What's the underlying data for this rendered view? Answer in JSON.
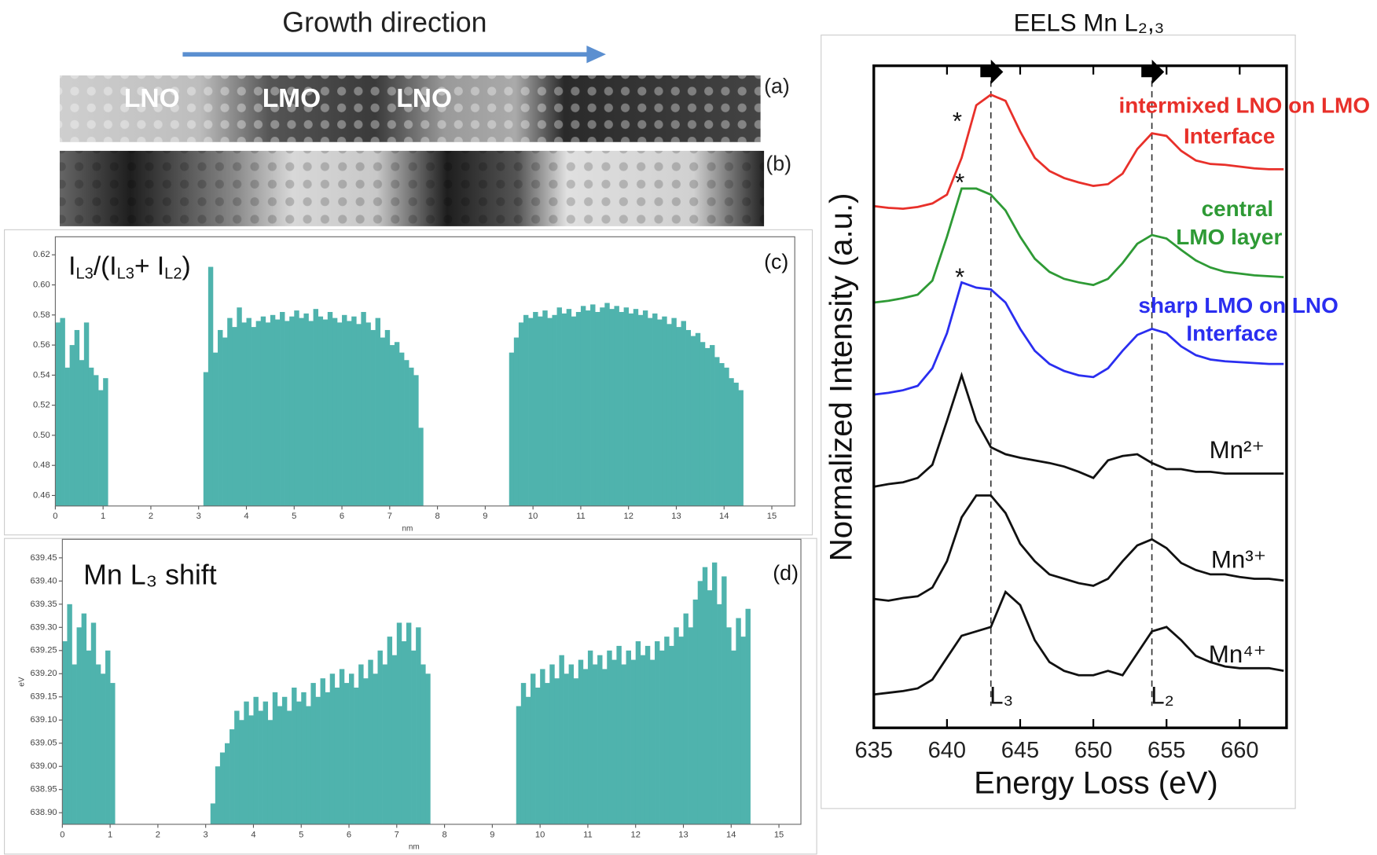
{
  "header": {
    "text": "Growth direction"
  },
  "image_a": {
    "label": "(a)",
    "regions": [
      "LNO",
      "LMO",
      "LNO"
    ]
  },
  "image_b": {
    "label": "(b)"
  },
  "chart_data": [
    {
      "type": "bar",
      "panel_label": "(c)",
      "title": [
        "I",
        "L3",
        "/(I",
        "L3",
        "+ I",
        "L2",
        ")"
      ],
      "xlabel": "nm",
      "color": "#4fb3ad",
      "xlim": [
        0,
        15.48
      ],
      "xticks": [
        0,
        1,
        2,
        3,
        4,
        5,
        6,
        7,
        8,
        9,
        10,
        11,
        12,
        13,
        14,
        15
      ],
      "ylim": [
        0.453,
        0.632
      ],
      "yticks": [
        0.46,
        0.48,
        {
          "value": 0.5,
          "label": "0.50"
        },
        0.52,
        0.54,
        0.56,
        0.58,
        {
          "value": 0.6,
          "label": "0.60"
        },
        0.62
      ],
      "x": [
        0,
        0.1,
        0.2,
        0.3,
        0.4,
        0.5,
        0.6,
        0.7,
        0.8,
        0.9,
        1.0,
        3.1,
        3.2,
        3.3,
        3.4,
        3.5,
        3.6,
        3.7,
        3.8,
        3.9,
        4.0,
        4.1,
        4.2,
        4.3,
        4.4,
        4.5,
        4.6,
        4.7,
        4.8,
        4.9,
        5.0,
        5.1,
        5.2,
        5.3,
        5.4,
        5.5,
        5.6,
        5.7,
        5.8,
        5.9,
        6.0,
        6.1,
        6.2,
        6.3,
        6.4,
        6.5,
        6.6,
        6.7,
        6.8,
        6.9,
        7.0,
        7.1,
        7.2,
        7.3,
        7.4,
        7.5,
        7.6,
        9.5,
        9.6,
        9.7,
        9.8,
        9.9,
        10.0,
        10.1,
        10.2,
        10.3,
        10.4,
        10.5,
        10.6,
        10.7,
        10.8,
        10.9,
        11.0,
        11.1,
        11.2,
        11.3,
        11.4,
        11.5,
        11.6,
        11.7,
        11.8,
        11.9,
        12.0,
        12.1,
        12.2,
        12.3,
        12.4,
        12.5,
        12.6,
        12.7,
        12.8,
        12.9,
        13.0,
        13.1,
        13.2,
        13.3,
        13.4,
        13.5,
        13.6,
        13.7,
        13.8,
        13.9,
        14.0,
        14.1,
        14.2,
        14.3
      ],
      "values": [
        0.575,
        0.578,
        0.545,
        0.56,
        0.57,
        0.55,
        0.575,
        0.545,
        0.54,
        0.53,
        0.538,
        0.542,
        0.612,
        0.555,
        0.57,
        0.565,
        0.578,
        0.572,
        0.585,
        0.575,
        0.578,
        0.572,
        0.576,
        0.579,
        0.575,
        0.58,
        0.577,
        0.582,
        0.576,
        0.579,
        0.583,
        0.578,
        0.581,
        0.576,
        0.584,
        0.579,
        0.577,
        0.582,
        0.578,
        0.575,
        0.58,
        0.576,
        0.579,
        0.574,
        0.582,
        0.575,
        0.57,
        0.578,
        0.565,
        0.57,
        0.56,
        0.562,
        0.555,
        0.55,
        0.545,
        0.54,
        0.505,
        0.555,
        0.565,
        0.575,
        0.58,
        0.578,
        0.582,
        0.579,
        0.583,
        0.578,
        0.58,
        0.585,
        0.581,
        0.584,
        0.579,
        0.582,
        0.586,
        0.583,
        0.587,
        0.582,
        0.585,
        0.588,
        0.584,
        0.586,
        0.582,
        0.585,
        0.581,
        0.584,
        0.58,
        0.583,
        0.578,
        0.581,
        0.577,
        0.579,
        0.574,
        0.578,
        0.572,
        0.576,
        0.57,
        0.566,
        0.568,
        0.562,
        0.558,
        0.56,
        0.552,
        0.548,
        0.545,
        0.538,
        0.535,
        0.53
      ]
    },
    {
      "type": "bar",
      "panel_label": "(d)",
      "title": "Mn L₃ shift",
      "xlabel": "nm",
      "ylabel": "eV",
      "color": "#4fb3ad",
      "xlim": [
        0,
        15.46
      ],
      "xticks": [
        0,
        1,
        2,
        3,
        4,
        5,
        6,
        7,
        8,
        9,
        10,
        11,
        12,
        13,
        14,
        15
      ],
      "ylim": [
        638.875,
        639.49
      ],
      "yticks": [
        {
          "value": 638.9,
          "label": "638.90"
        },
        638.95,
        {
          "value": 639,
          "label": "639.00"
        },
        639.05,
        {
          "value": 639.1,
          "label": "639.10"
        },
        639.15,
        {
          "value": 639.2,
          "label": "639.20"
        },
        639.25,
        {
          "value": 639.3,
          "label": "639.30"
        },
        639.35,
        {
          "value": 639.4,
          "label": "639.40"
        },
        639.45
      ],
      "x": [
        0,
        0.1,
        0.2,
        0.3,
        0.4,
        0.5,
        0.6,
        0.7,
        0.8,
        0.9,
        1.0,
        3.1,
        3.2,
        3.3,
        3.4,
        3.5,
        3.6,
        3.7,
        3.8,
        3.9,
        4.0,
        4.1,
        4.2,
        4.3,
        4.4,
        4.5,
        4.6,
        4.7,
        4.8,
        4.9,
        5.0,
        5.1,
        5.2,
        5.3,
        5.4,
        5.5,
        5.6,
        5.7,
        5.8,
        5.9,
        6.0,
        6.1,
        6.2,
        6.3,
        6.4,
        6.5,
        6.6,
        6.7,
        6.8,
        6.9,
        7.0,
        7.1,
        7.2,
        7.3,
        7.4,
        7.5,
        7.6,
        9.5,
        9.6,
        9.7,
        9.8,
        9.9,
        10.0,
        10.1,
        10.2,
        10.3,
        10.4,
        10.5,
        10.6,
        10.7,
        10.8,
        10.9,
        11.0,
        11.1,
        11.2,
        11.3,
        11.4,
        11.5,
        11.6,
        11.7,
        11.8,
        11.9,
        12.0,
        12.1,
        12.2,
        12.3,
        12.4,
        12.5,
        12.6,
        12.7,
        12.8,
        12.9,
        13.0,
        13.1,
        13.2,
        13.3,
        13.4,
        13.5,
        13.6,
        13.7,
        13.8,
        13.9,
        14.0,
        14.1,
        14.2,
        14.3
      ],
      "values": [
        639.27,
        639.35,
        639.22,
        639.3,
        639.33,
        639.25,
        639.31,
        639.22,
        639.2,
        639.25,
        639.18,
        638.92,
        639.0,
        639.03,
        639.05,
        639.08,
        639.12,
        639.1,
        639.14,
        639.11,
        639.15,
        639.12,
        639.14,
        639.1,
        639.16,
        639.13,
        639.15,
        639.12,
        639.17,
        639.14,
        639.16,
        639.13,
        639.18,
        639.15,
        639.19,
        639.16,
        639.2,
        639.17,
        639.21,
        639.18,
        639.2,
        639.17,
        639.22,
        639.19,
        639.23,
        639.2,
        639.25,
        639.22,
        639.28,
        639.24,
        639.31,
        639.27,
        639.31,
        639.25,
        639.3,
        639.22,
        639.2,
        639.13,
        639.18,
        639.15,
        639.2,
        639.17,
        639.21,
        639.18,
        639.22,
        639.19,
        639.24,
        639.2,
        639.22,
        639.19,
        639.23,
        639.21,
        639.25,
        639.22,
        639.24,
        639.21,
        639.25,
        639.23,
        639.26,
        639.22,
        639.25,
        639.23,
        639.27,
        639.24,
        639.26,
        639.23,
        639.27,
        639.25,
        639.28,
        639.26,
        639.3,
        639.28,
        639.33,
        639.3,
        639.36,
        639.4,
        639.43,
        639.38,
        639.44,
        639.35,
        639.41,
        639.3,
        639.25,
        639.32,
        639.28,
        639.34
      ]
    },
    {
      "type": "line",
      "title": "EELS Mn L₂,₃",
      "xlabel": "Energy Loss (eV)",
      "ylabel": "Normalized Intensity (a.u.)",
      "xlim": [
        635,
        663.2
      ],
      "xticks": [
        635,
        640,
        645,
        650,
        655,
        660
      ],
      "ylim": [
        0,
        755
      ],
      "ref_lines": [
        {
          "value": 643,
          "label": "L₃"
        },
        {
          "value": 654,
          "label": "L₂"
        }
      ],
      "x": [
        635,
        636,
        637,
        638,
        639,
        640,
        641,
        642,
        643,
        644,
        645,
        646,
        647,
        648,
        649,
        650,
        651,
        652,
        653,
        654,
        655,
        656,
        657,
        658,
        659,
        660,
        661,
        662,
        663
      ],
      "series": [
        {
          "name": [
            "intermixed LNO on LMO",
            "Interface"
          ],
          "color": "#e8302a",
          "annotation": "*",
          "values": [
            595,
            593,
            592,
            594,
            598,
            608,
            650,
            710,
            722,
            715,
            680,
            650,
            635,
            627,
            622,
            618,
            620,
            632,
            660,
            678,
            675,
            658,
            647,
            643,
            642,
            640,
            638,
            637,
            637
          ]
        },
        {
          "name": [
            "central",
            "LMO layer"
          ],
          "color": "#2e9a35",
          "annotation": "*",
          "values": [
            485,
            487,
            490,
            494,
            510,
            560,
            615,
            615,
            608,
            590,
            560,
            535,
            520,
            512,
            508,
            505,
            512,
            530,
            552,
            562,
            558,
            545,
            533,
            525,
            520,
            518,
            516,
            515,
            514
          ]
        },
        {
          "name": [
            "sharp LMO on LNO",
            "Interface"
          ],
          "color": "#2a2ef0",
          "annotation": "*",
          "values": [
            380,
            382,
            385,
            390,
            410,
            450,
            508,
            502,
            500,
            485,
            455,
            430,
            415,
            407,
            402,
            400,
            410,
            430,
            448,
            455,
            450,
            435,
            425,
            420,
            418,
            417,
            416,
            415,
            415
          ]
        },
        {
          "name": [
            "Mn²⁺"
          ],
          "color": "#111111",
          "values": [
            275,
            278,
            280,
            285,
            300,
            350,
            402,
            350,
            320,
            312,
            308,
            305,
            302,
            298,
            292,
            285,
            305,
            310,
            312,
            302,
            295,
            295,
            292,
            292,
            290,
            290,
            290,
            290,
            290
          ]
        },
        {
          "name": [
            "Mn³⁺"
          ],
          "color": "#111111",
          "values": [
            147,
            145,
            148,
            150,
            160,
            190,
            240,
            265,
            265,
            245,
            210,
            190,
            175,
            170,
            165,
            162,
            170,
            190,
            208,
            215,
            205,
            188,
            180,
            175,
            175,
            172,
            170,
            170,
            168
          ]
        },
        {
          "name": [
            "Mn⁴⁺"
          ],
          "color": "#111111",
          "values": [
            38,
            40,
            42,
            45,
            55,
            80,
            105,
            110,
            115,
            155,
            140,
            100,
            75,
            65,
            60,
            60,
            65,
            60,
            85,
            110,
            115,
            100,
            82,
            75,
            70,
            68,
            68,
            68,
            65
          ]
        }
      ]
    }
  ]
}
